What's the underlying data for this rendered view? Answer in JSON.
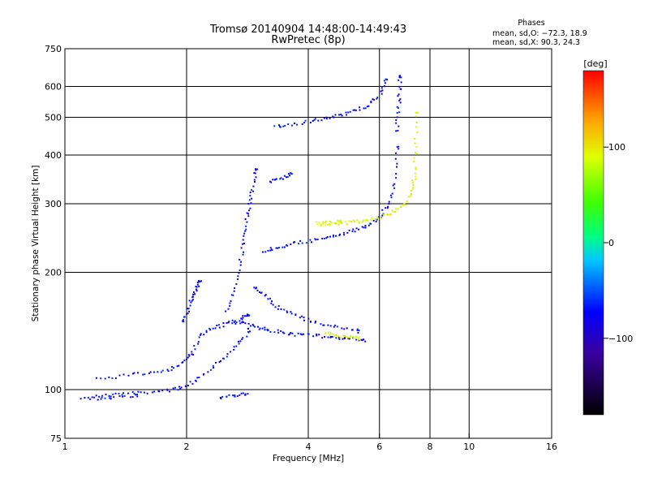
{
  "chart_data": {
    "type": "scatter",
    "title": "Tromsø 20140904 14:48:00-14:49:43",
    "subtitle": "RwPretec (8p)",
    "xlabel": "Frequency [MHz]",
    "ylabel": "Stationary phase Virtual Height [km]",
    "x_scale": "log",
    "y_scale": "log",
    "xlim": [
      1,
      16
    ],
    "ylim": [
      75,
      750
    ],
    "x_ticks": [
      1,
      2,
      4,
      6,
      8,
      10,
      16
    ],
    "y_ticks": [
      75,
      100,
      200,
      300,
      400,
      500,
      600,
      750
    ],
    "grid_x": [
      2,
      4,
      6,
      8,
      10
    ],
    "grid_y": [
      100,
      200,
      300,
      400,
      500,
      600
    ],
    "phases": {
      "heading": "Phases",
      "o_line": "mean, sd,O: −72.3, 18.9",
      "x_line": "mean, sd,X:  90.3, 24.3"
    },
    "colorbar": {
      "unit": "[deg]",
      "range": [
        -180,
        180
      ],
      "ticks": [
        100,
        0,
        -100
      ],
      "tick_labels": [
        "100",
        "0",
        "−100"
      ]
    },
    "series": [
      {
        "name": "",
        "mode": "O",
        "phase_mean": -72.3,
        "traces": [
          {
            "x": [
              1.1,
              1.25,
              1.4,
              1.6,
              1.8,
              1.95,
              2.1,
              2.3,
              2.5,
              2.7,
              2.85
            ],
            "y": [
              96,
              97,
              98,
              99,
              100,
              102,
              106,
              115,
              123,
              133,
              143
            ]
          },
          {
            "x": [
              1.2,
              1.4,
              1.6,
              1.8,
              1.95,
              2.05,
              2.15,
              2.3,
              2.5,
              2.7,
              2.85
            ],
            "y": [
              107,
              109,
              111,
              113,
              118,
              124,
              138,
              145,
              148,
              152,
              157
            ]
          },
          {
            "x": [
              1.95,
              2.0,
              2.05,
              2.1,
              2.15
            ],
            "y": [
              150,
              160,
              172,
              182,
              190
            ]
          },
          {
            "x": [
              2.5,
              2.6,
              2.7,
              2.75,
              2.8,
              2.85,
              2.9,
              2.95
            ],
            "y": [
              160,
              180,
              210,
              240,
              270,
              300,
              330,
              370
            ]
          },
          {
            "x": [
              2.6,
              2.8,
              3.0,
              3.2,
              3.5,
              3.8,
              4.2,
              4.6,
              5.0,
              5.5
            ],
            "y": [
              150,
              148,
              145,
              143,
              140,
              139,
              138,
              137,
              136,
              134
            ]
          },
          {
            "x": [
              2.9,
              3.1,
              3.3,
              3.6,
              3.9,
              4.3,
              4.8,
              5.3
            ],
            "y": [
              185,
              175,
              165,
              158,
              152,
              148,
              145,
              142
            ]
          },
          {
            "x": [
              3.1,
              3.3,
              3.6,
              4.0,
              4.4,
              4.8,
              5.2,
              5.6,
              6.0,
              6.3,
              6.5,
              6.6
            ],
            "y": [
              228,
              232,
              237,
              242,
              246,
              251,
              258,
              266,
              280,
              300,
              340,
              420
            ]
          },
          {
            "x": [
              6.6,
              6.65,
              6.7,
              6.72
            ],
            "y": [
              460,
              520,
              580,
              640
            ]
          },
          {
            "x": [
              3.3,
              3.6,
              4.0,
              4.4,
              4.8,
              5.2,
              5.6,
              6.0,
              6.2
            ],
            "y": [
              475,
              482,
              490,
              498,
              508,
              522,
              540,
              575,
              625
            ]
          },
          {
            "x": [
              1.15,
              1.3,
              1.5
            ],
            "y": [
              95,
              96,
              97
            ]
          },
          {
            "x": [
              2.4,
              2.6,
              2.8
            ],
            "y": [
              96,
              97,
              98
            ]
          },
          {
            "x": [
              3.2,
              3.4,
              3.6
            ],
            "y": [
              345,
              350,
              360
            ]
          }
        ]
      },
      {
        "name": "",
        "mode": "X",
        "phase_mean": 90.3,
        "traces": [
          {
            "x": [
              4.2,
              4.6,
              5.0,
              5.4,
              5.8,
              6.2,
              6.6,
              7.0,
              7.2,
              7.3,
              7.35,
              7.4
            ],
            "y": [
              265,
              267,
              270,
              272,
              276,
              282,
              290,
              305,
              330,
              360,
              420,
              520
            ]
          },
          {
            "x": [
              4.4,
              4.7,
              5.0,
              5.3
            ],
            "y": [
              140,
              138,
              137,
              136
            ]
          },
          {
            "x": [
              4.2,
              4.5,
              4.8
            ],
            "y": [
              268,
              270,
              271
            ]
          }
        ]
      }
    ]
  }
}
